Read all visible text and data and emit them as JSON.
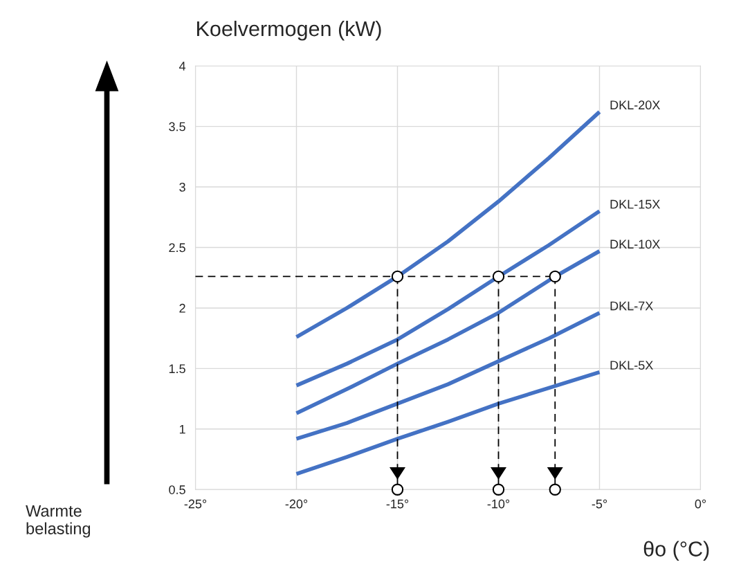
{
  "chart_data": {
    "type": "line",
    "ylabel": "Koelvermogen (kW)",
    "xlabel": "θo (°C)",
    "annotations": [
      "Warmte\nbelasting"
    ],
    "xlim": [
      -25,
      0
    ],
    "ylim": [
      0.5,
      4
    ],
    "xticks": [
      {
        "value": -25,
        "label": "-25°"
      },
      {
        "value": -20,
        "label": "-20°"
      },
      {
        "value": -15,
        "label": "-15°"
      },
      {
        "value": -10,
        "label": "-10°"
      },
      {
        "value": -5,
        "label": "-5°"
      },
      {
        "value": 0,
        "label": "0°"
      }
    ],
    "yticks": [
      0.5,
      1,
      1.5,
      2,
      2.5,
      3,
      3.5,
      4
    ],
    "grid": true,
    "legend": false,
    "series": [
      {
        "name": "DKL-20X",
        "color": "#4472c4",
        "x": [
          -20,
          -17.5,
          -15,
          -12.5,
          -10,
          -7.5,
          -5
        ],
        "values": [
          1.76,
          2.0,
          2.26,
          2.55,
          2.88,
          3.24,
          3.62
        ]
      },
      {
        "name": "DKL-15X",
        "color": "#4472c4",
        "x": [
          -20,
          -17.5,
          -15,
          -12.5,
          -10,
          -7.5,
          -5
        ],
        "values": [
          1.36,
          1.54,
          1.74,
          1.99,
          2.26,
          2.52,
          2.8
        ]
      },
      {
        "name": "DKL-10X",
        "color": "#4472c4",
        "x": [
          -20,
          -17.5,
          -15,
          -12.5,
          -10,
          -7.2,
          -5
        ],
        "values": [
          1.13,
          1.33,
          1.54,
          1.74,
          1.96,
          2.26,
          2.47
        ]
      },
      {
        "name": "DKL-7X",
        "color": "#4472c4",
        "x": [
          -20,
          -17.5,
          -15,
          -12.5,
          -10,
          -7.5,
          -5
        ],
        "values": [
          0.92,
          1.05,
          1.21,
          1.37,
          1.56,
          1.75,
          1.96
        ]
      },
      {
        "name": "DKL-5X",
        "color": "#4472c4",
        "x": [
          -20,
          -17.5,
          -15,
          -12.5,
          -10,
          -7.5,
          -5
        ],
        "values": [
          0.63,
          0.77,
          0.92,
          1.06,
          1.21,
          1.34,
          1.47
        ]
      },
      {
        "color": "#000000",
        "line_style": "dashed",
        "x": [
          -25,
          -7.2
        ],
        "values": [
          2.26,
          2.26
        ]
      },
      {
        "color": "#000000",
        "line_style": "dashed",
        "marker": "circle",
        "x": [
          -15,
          -15
        ],
        "values": [
          2.26,
          0.5
        ]
      },
      {
        "color": "#000000",
        "line_style": "dashed",
        "marker": "circle",
        "x": [
          -10,
          -10
        ],
        "values": [
          2.26,
          0.5
        ]
      },
      {
        "color": "#000000",
        "line_style": "dashed",
        "marker": "circle",
        "x": [
          -7.2,
          -7.2
        ],
        "values": [
          2.26,
          0.5
        ]
      }
    ]
  }
}
